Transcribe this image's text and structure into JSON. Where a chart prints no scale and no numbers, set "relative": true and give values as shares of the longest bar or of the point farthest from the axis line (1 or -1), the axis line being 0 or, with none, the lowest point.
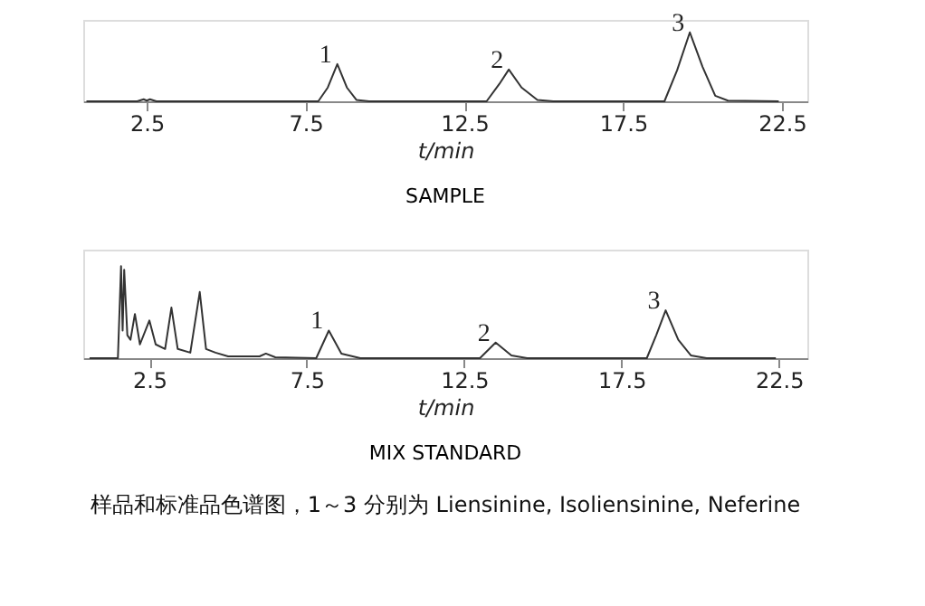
{
  "chart_data": [
    {
      "type": "line",
      "title": "SAMPLE",
      "xlabel": "t/min",
      "relative": true,
      "grid": false,
      "marker": "none",
      "line_style": "solid",
      "tick_labels": "x",
      "xlim": [
        0.5,
        23.3
      ],
      "xticks": [
        2.5,
        7.5,
        12.5,
        17.5,
        22.5
      ],
      "series": [
        {
          "color": "#333333",
          "x": [
            0.6,
            2.2,
            2.4,
            2.5,
            2.6,
            2.8,
            7.9,
            8.2,
            8.5,
            8.8,
            9.1,
            9.5,
            13.2,
            13.6,
            13.9,
            14.3,
            14.8,
            15.3,
            18.8,
            19.2,
            19.6,
            20.0,
            20.4,
            20.8,
            22.4
          ],
          "values": [
            0,
            0,
            0.03,
            0.01,
            0.03,
            0,
            0,
            0.2,
            0.54,
            0.2,
            0.02,
            0,
            0,
            0.25,
            0.46,
            0.2,
            0.02,
            0,
            0,
            0.45,
            1,
            0.5,
            0.08,
            0.01,
            0
          ]
        }
      ],
      "annotations": [
        {
          "text": "1",
          "x": 8.5,
          "y": 0.54
        },
        {
          "text": "2",
          "x": 13.9,
          "y": 0.46
        },
        {
          "text": "3",
          "x": 19.6,
          "y": 1
        }
      ]
    },
    {
      "type": "line",
      "title": "MIX STANDARD",
      "xlabel": "t/min",
      "relative": true,
      "grid": false,
      "marker": "none",
      "line_style": "solid",
      "tick_labels": "x",
      "xlim": [
        0.4,
        23.4
      ],
      "xticks": [
        2.5,
        7.5,
        12.5,
        17.5,
        22.5
      ],
      "series": [
        {
          "color": "#333333",
          "x": [
            0.6,
            1.5,
            1.6,
            1.65,
            1.7,
            1.8,
            1.9,
            2.04,
            2.2,
            2.5,
            2.7,
            3.0,
            3.2,
            3.4,
            3.8,
            4.1,
            4.3,
            4.6,
            5.0,
            6.0,
            6.2,
            6.5,
            7.8,
            8.2,
            8.6,
            9.2,
            13.0,
            13.5,
            14.0,
            14.5,
            18.3,
            18.6,
            18.9,
            19.3,
            19.7,
            20.2,
            22.4
          ],
          "values": [
            0,
            0,
            1.0,
            0.3,
            0.96,
            0.25,
            0.2,
            0.48,
            0.15,
            0.41,
            0.15,
            0.1,
            0.55,
            0.1,
            0.06,
            0.72,
            0.1,
            0.06,
            0.02,
            0.02,
            0.05,
            0.01,
            0,
            0.3,
            0.05,
            0,
            0,
            0.17,
            0.03,
            0,
            0,
            0.25,
            0.52,
            0.2,
            0.03,
            0,
            0
          ]
        }
      ],
      "annotations": [
        {
          "text": "1",
          "x": 8.2,
          "y": 0.3
        },
        {
          "text": "2",
          "x": 13.5,
          "y": 0.17
        },
        {
          "text": "3",
          "x": 18.9,
          "y": 0.52
        },
        "样品和标准品色谱图，1～3 分别为 Liensinine, Isoliensinine, Neferine"
      ]
    }
  ]
}
